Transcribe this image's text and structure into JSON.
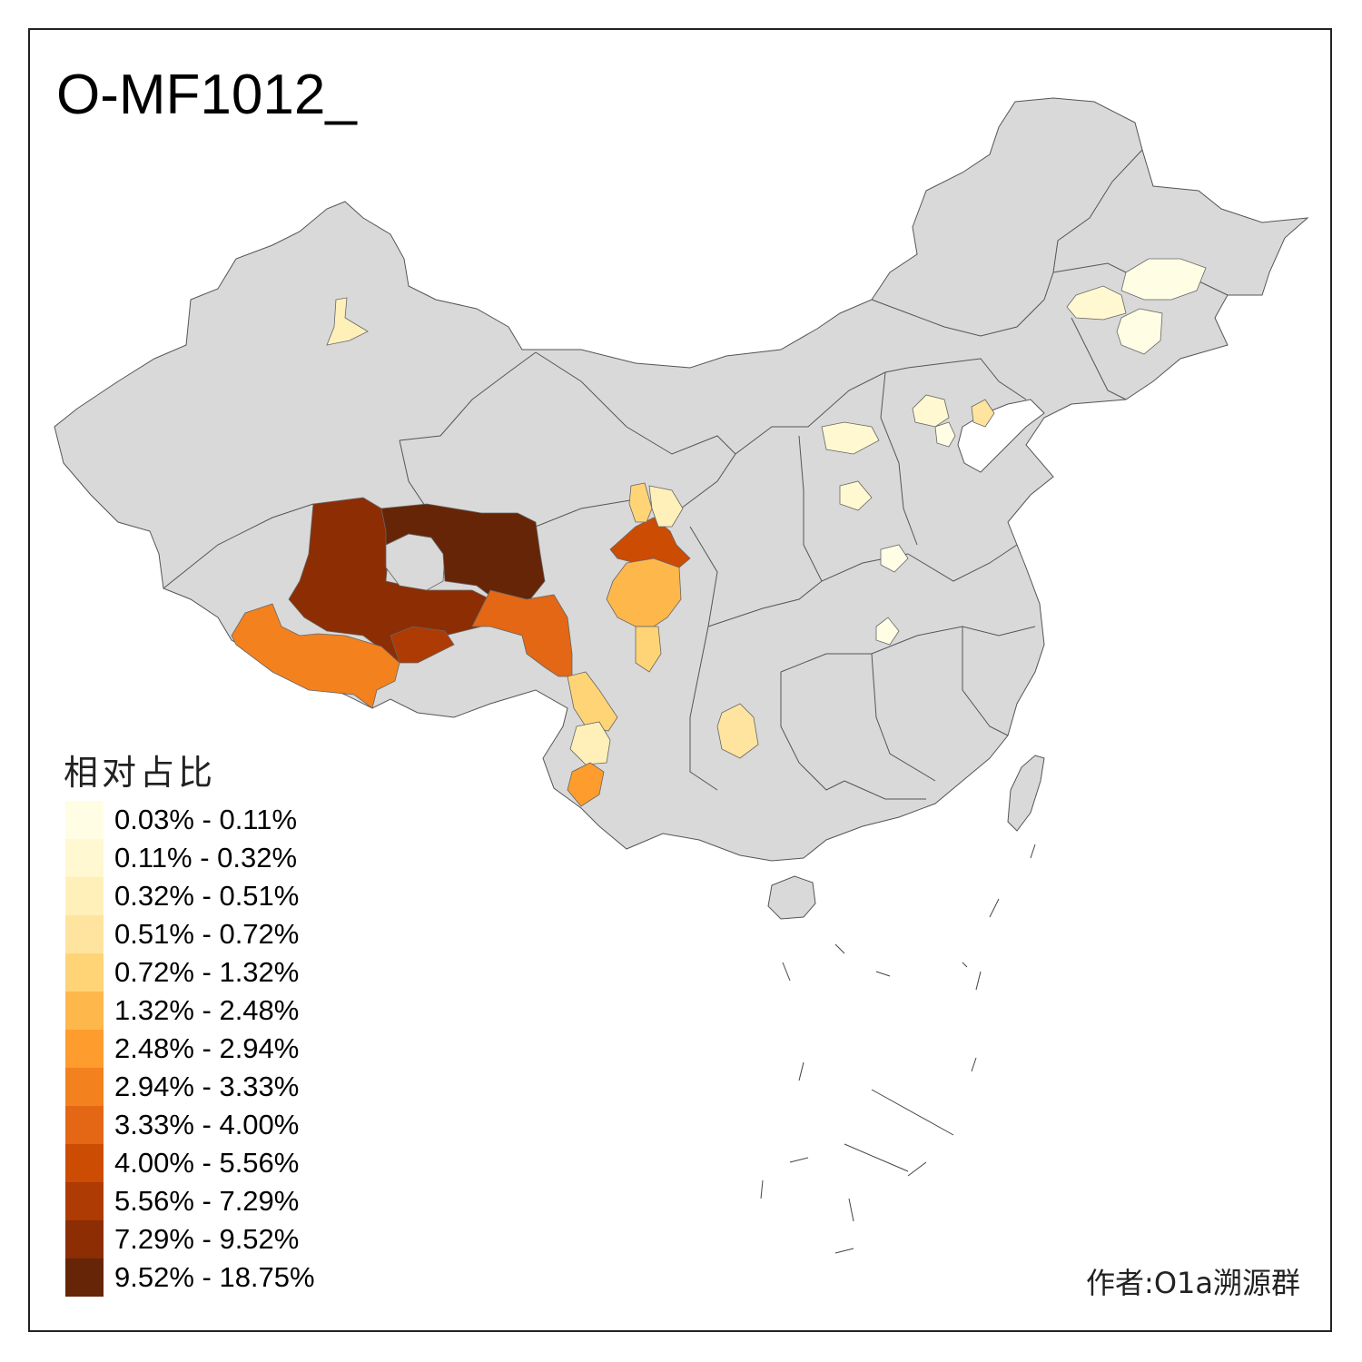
{
  "title": "O-MF1012_",
  "legend": {
    "title": "相对占比",
    "items": [
      {
        "label": "0.03% - 0.11%",
        "color": "#FFFEE5"
      },
      {
        "label": "0.11% - 0.32%",
        "color": "#FFF8D1"
      },
      {
        "label": "0.32% - 0.51%",
        "color": "#FFF0BA"
      },
      {
        "label": "0.51% - 0.72%",
        "color": "#FEE49E"
      },
      {
        "label": "0.72% - 1.32%",
        "color": "#FED476"
      },
      {
        "label": "1.32% - 2.48%",
        "color": "#FEB74B"
      },
      {
        "label": "2.48% - 2.94%",
        "color": "#FE9C2D"
      },
      {
        "label": "2.94% - 3.33%",
        "color": "#F3811E"
      },
      {
        "label": "3.33% - 4.00%",
        "color": "#E36714"
      },
      {
        "label": "4.00% - 5.56%",
        "color": "#CC4C04"
      },
      {
        "label": "5.56% - 7.29%",
        "color": "#AE3B03"
      },
      {
        "label": "7.29% - 9.52%",
        "color": "#8C2D04"
      },
      {
        "label": "9.52% - 18.75%",
        "color": "#662506"
      }
    ]
  },
  "credit": "作者:O1a溯源群",
  "colors": {
    "base_region": "#D9D9D9",
    "border": "#555555",
    "frame": "#222222"
  }
}
